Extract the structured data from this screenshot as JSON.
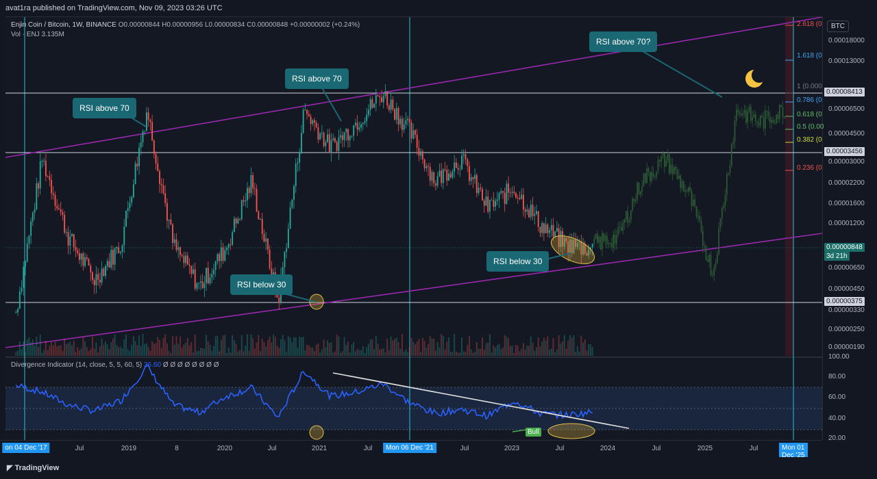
{
  "top": {
    "publisher": "avat1ra published on TradingView.com, Nov 09, 2023 03:26 UTC"
  },
  "legend": {
    "symbol": "Enjin Coin / Bitcoin, 1W, BINANCE",
    "ohlc": "O0.00000844 H0.00000956 L0.00000834 C0.00000848 +0.00000002 (+0.24%)",
    "vol": "Vol · ENJ 3.135M"
  },
  "indicator": {
    "title": "Divergence Indicator (14, close, 5, 5, 60, 5)",
    "value": "36.60",
    "extras": "Ø Ø Ø Ø Ø Ø Ø Ø"
  },
  "annotations": {
    "a1": "RSI above 70",
    "a2": "RSI above 70",
    "a3": "RSI above 70?",
    "b1": "RSI below 30",
    "b2": "RSI below 30",
    "bull": "Bull"
  },
  "price_axis": {
    "currency": "BTC",
    "ticks": [
      "0.00018000",
      "0.00013000",
      "0.00006500",
      "0.00004500",
      "0.00003000",
      "0.00002200",
      "0.00001600",
      "0.00001200",
      "0.00000650",
      "0.00000450",
      "0.00000330",
      "0.00000250",
      "0.00000190"
    ],
    "tag_top": "0.00008413",
    "tag_mid": "0.00003456",
    "tag_cur": "0.00000848",
    "tag_timer": "3d 21h",
    "tag_low": "0.00000375"
  },
  "fib": [
    "2.618 (0",
    "1.618 (0",
    "1 (0.000",
    "0.786 (0",
    "0.618 (0",
    "0.5 (0.00",
    "0.382 (0",
    "0.236 (0"
  ],
  "rsi_axis": [
    "100.00",
    "80.00",
    "60.00",
    "40.00",
    "20.00"
  ],
  "x_axis": {
    "labels": [
      "Jul",
      "2019",
      "8",
      "2020",
      "Jul",
      "2021",
      "Jul",
      "Jul",
      "2023",
      "Jul",
      "2024",
      "Jul",
      "2025",
      "Jul"
    ],
    "hl_left": "on 04 Dec '17",
    "hl_mid": "Mon 06 Dec '21",
    "hl_right": "Mon 01 Dec '25"
  },
  "footer": {
    "brand": "TradingView"
  },
  "colors": {
    "up": "#26a69a",
    "down": "#ef5350",
    "channel": "#9c27b0",
    "rsi": "#2962ff",
    "projection": "#1e4d2b",
    "bubble": "#1a6873"
  },
  "chart_data": [
    {
      "type": "line",
      "title": "Enjin Coin / Bitcoin, 1W, BINANCE",
      "x": [
        "2017-12",
        "2018-02",
        "2018-06",
        "2018-10",
        "2019-02",
        "2019-04",
        "2019-08",
        "2019-12",
        "2020-04",
        "2020-08",
        "2020-12",
        "2021-03",
        "2021-06",
        "2021-09",
        "2021-12",
        "2022-03",
        "2022-06",
        "2022-09",
        "2022-12",
        "2023-03",
        "2023-06",
        "2023-09",
        "2023-11"
      ],
      "series": [
        {
          "values": [
            3.5e-06,
            3e-05,
            1e-05,
            5.5e-06,
            9e-06,
            6e-05,
            9e-06,
            5e-06,
            8.5e-06,
            2.2e-05,
            4e-06,
            6e-05,
            3.5e-05,
            5e-05,
            7.5e-05,
            4.5e-05,
            2.2e-05,
            3e-05,
            1.5e-05,
            2e-05,
            1.2e-05,
            9e-06,
            8.5e-06
          ]
        }
      ],
      "yscale": "log",
      "ylim": [
        1.9e-06,
        0.00018
      ]
    },
    {
      "type": "line",
      "title": "Divergence Indicator (14, close, 5, 5, 60, 5)",
      "x": [
        "2017-12",
        "2018-02",
        "2018-06",
        "2018-10",
        "2019-02",
        "2019-04",
        "2019-08",
        "2019-12",
        "2020-04",
        "2020-08",
        "2020-12",
        "2021-03",
        "2021-06",
        "2021-09",
        "2021-12",
        "2022-03",
        "2022-06",
        "2022-09",
        "2022-12",
        "2023-03",
        "2023-06",
        "2023-09",
        "2023-11"
      ],
      "series": [
        {
          "values": [
            68,
            60,
            45,
            38,
            50,
            90,
            45,
            36,
            55,
            65,
            30,
            85,
            55,
            60,
            70,
            48,
            35,
            40,
            32,
            50,
            35,
            33,
            36.6
          ]
        }
      ],
      "ylim": [
        20,
        100
      ]
    }
  ]
}
